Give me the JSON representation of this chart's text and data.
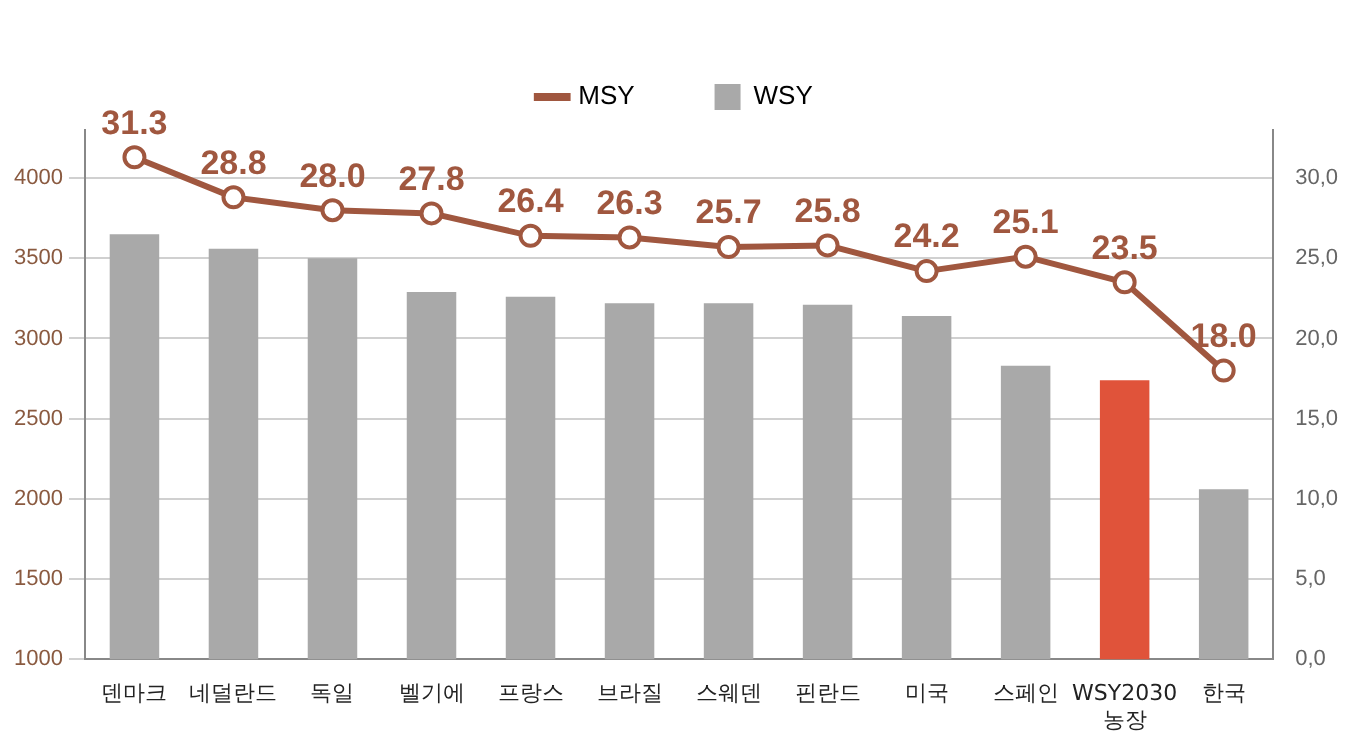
{
  "chart_data": {
    "type": "bar",
    "categories": [
      "덴마크",
      "네덜란드",
      "독일",
      "벨기에",
      "프랑스",
      "브라질",
      "스웨덴",
      "핀란드",
      "미국",
      "스페인",
      "WSY2030 농장",
      "한국"
    ],
    "series": [
      {
        "name": "MSY",
        "type": "line",
        "axis": "y2",
        "color": "#a0573f",
        "marker": "circle",
        "values": [
          31.3,
          28.8,
          28.0,
          27.8,
          26.4,
          26.3,
          25.7,
          25.8,
          24.2,
          25.1,
          23.5,
          18.0
        ],
        "value_labels": [
          "31.3",
          "28.8",
          "28.0",
          "27.8",
          "26.4",
          "26.3",
          "25.7",
          "25.8",
          "24.2",
          "25.1",
          "23.5",
          "18.0"
        ]
      },
      {
        "name": "WSY",
        "color": "#a9a9a9",
        "colors": [
          "#a9a9a9",
          "#a9a9a9",
          "#a9a9a9",
          "#a9a9a9",
          "#a9a9a9",
          "#a9a9a9",
          "#a9a9a9",
          "#a9a9a9",
          "#a9a9a9",
          "#a9a9a9",
          "#e0533a",
          "#a9a9a9"
        ],
        "values": [
          3650,
          3560,
          3500,
          3290,
          3260,
          3220,
          3220,
          3210,
          3140,
          2830,
          2740,
          2060
        ]
      }
    ],
    "ylim": [
      1000,
      4300
    ],
    "yticks": [
      1000,
      1500,
      2000,
      2500,
      3000,
      3500,
      4000
    ],
    "y2lim": [
      0,
      33
    ],
    "y2ticks": [
      {
        "value": 0,
        "label": "0,0"
      },
      {
        "value": 5,
        "label": "5,0"
      },
      {
        "value": 10,
        "label": "10,0"
      },
      {
        "value": 15,
        "label": "15,0"
      },
      {
        "value": 20,
        "label": "20,0"
      },
      {
        "value": 25,
        "label": "25,0"
      },
      {
        "value": 30,
        "label": "30,0"
      }
    ],
    "grid": "y",
    "legend": "top"
  }
}
